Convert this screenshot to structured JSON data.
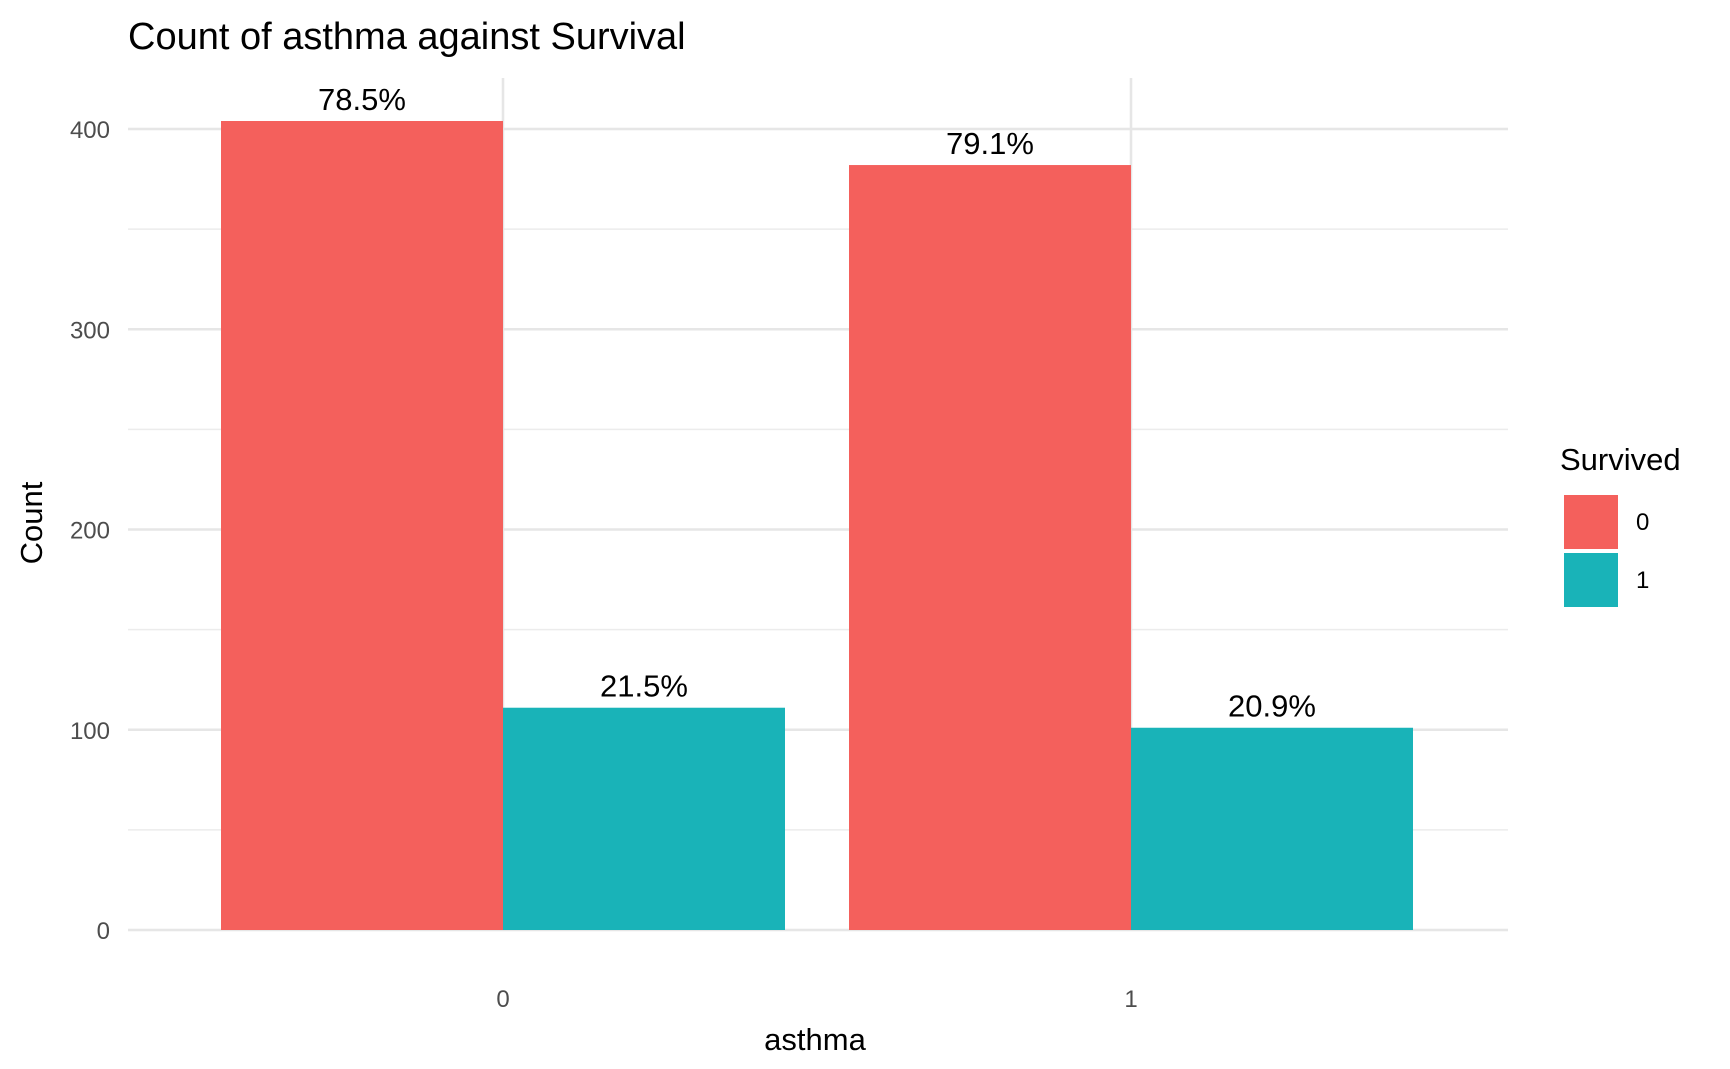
{
  "chart_data": {
    "type": "bar",
    "title": "Count of asthma against Survival",
    "xlabel": "asthma",
    "ylabel": "Count",
    "categories": [
      "0",
      "1"
    ],
    "ylim": [
      0,
      430
    ],
    "yticks": [
      0,
      100,
      200,
      300,
      400
    ],
    "grid": true,
    "legend": {
      "title": "Survived",
      "position": "right"
    },
    "series": [
      {
        "name": "0",
        "color": "#F4605C",
        "values": [
          404,
          382
        ],
        "labels": [
          "78.5%",
          "79.1%"
        ]
      },
      {
        "name": "1",
        "color": "#19B3B8",
        "values": [
          111,
          101
        ],
        "labels": [
          "21.5%",
          "20.9%"
        ]
      }
    ]
  }
}
